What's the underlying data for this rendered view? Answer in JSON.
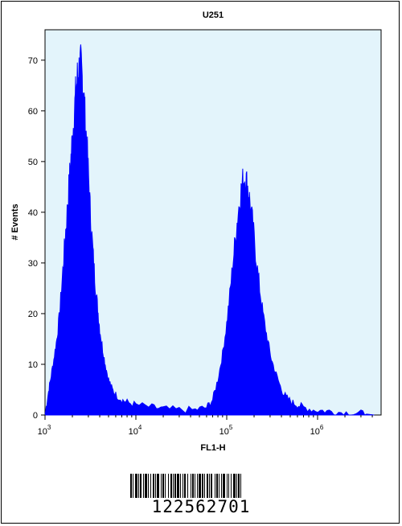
{
  "chart_data": {
    "type": "histogram",
    "title": "U251",
    "xlabel": "FL1-H",
    "ylabel": "# Events",
    "xscale": "log",
    "xlim": [
      1000,
      5000000
    ],
    "ylim": [
      0,
      76
    ],
    "x_ticks": [
      {
        "value": 1000,
        "base": "10",
        "exp": "3"
      },
      {
        "value": 10000,
        "base": "10",
        "exp": "4"
      },
      {
        "value": 100000,
        "base": "10",
        "exp": "5"
      },
      {
        "value": 1000000,
        "base": "10",
        "exp": "6"
      }
    ],
    "y_ticks": [
      0,
      10,
      20,
      30,
      40,
      50,
      60,
      70
    ],
    "grid": false,
    "background": "#e3f4fb",
    "fill_color": "#0000ff",
    "series": [
      {
        "points": [
          [
            1000,
            0
          ],
          [
            1080,
            4
          ],
          [
            1150,
            7
          ],
          [
            1250,
            11
          ],
          [
            1350,
            15
          ],
          [
            1450,
            20
          ],
          [
            1550,
            27
          ],
          [
            1650,
            34
          ],
          [
            1750,
            40
          ],
          [
            1850,
            46
          ],
          [
            1950,
            52
          ],
          [
            2050,
            57
          ],
          [
            2150,
            62
          ],
          [
            2250,
            66
          ],
          [
            2350,
            68
          ],
          [
            2450,
            69
          ],
          [
            2550,
            67
          ],
          [
            2650,
            64
          ],
          [
            2750,
            59
          ],
          [
            2900,
            53
          ],
          [
            3050,
            45
          ],
          [
            3200,
            38
          ],
          [
            3400,
            31
          ],
          [
            3600,
            25
          ],
          [
            3800,
            21
          ],
          [
            4000,
            17
          ],
          [
            4300,
            13
          ],
          [
            4600,
            10
          ],
          [
            5000,
            7
          ],
          [
            5500,
            5
          ],
          [
            6000,
            4
          ],
          [
            7000,
            3
          ],
          [
            8000,
            2.5
          ],
          [
            10000,
            2
          ],
          [
            15000,
            1.5
          ],
          [
            20000,
            1.2
          ],
          [
            30000,
            1
          ],
          [
            45000,
            1
          ],
          [
            60000,
            1.5
          ],
          [
            70000,
            3
          ],
          [
            80000,
            7
          ],
          [
            90000,
            12
          ],
          [
            100000,
            18
          ],
          [
            110000,
            25
          ],
          [
            120000,
            32
          ],
          [
            130000,
            38
          ],
          [
            140000,
            43
          ],
          [
            150000,
            46
          ],
          [
            160000,
            47
          ],
          [
            170000,
            45
          ],
          [
            180000,
            42
          ],
          [
            195000,
            37
          ],
          [
            210000,
            31
          ],
          [
            230000,
            25
          ],
          [
            250000,
            20
          ],
          [
            280000,
            15
          ],
          [
            310000,
            11
          ],
          [
            350000,
            8
          ],
          [
            400000,
            5
          ],
          [
            450000,
            3.5
          ],
          [
            520000,
            2.5
          ],
          [
            600000,
            2
          ],
          [
            700000,
            1.5
          ],
          [
            900000,
            1
          ],
          [
            1200000,
            0.8
          ],
          [
            1600000,
            0.6
          ],
          [
            2200000,
            0.4
          ],
          [
            3000000,
            0.3
          ],
          [
            3800000,
            0.1
          ],
          [
            4200000,
            0
          ]
        ]
      }
    ]
  },
  "barcode": {
    "number": "122562701"
  }
}
